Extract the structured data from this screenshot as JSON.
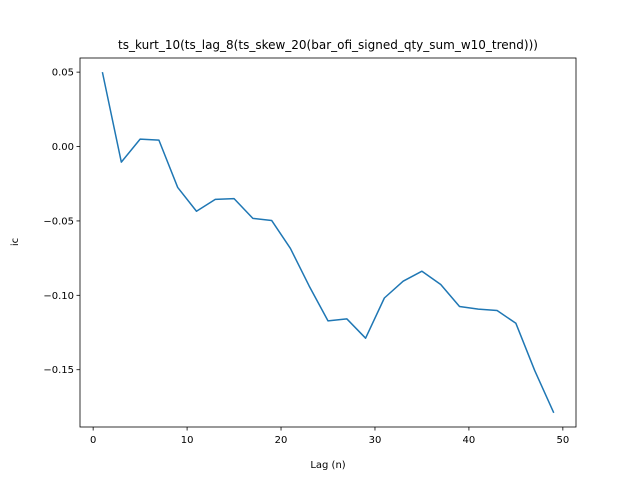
{
  "chart_data": {
    "type": "line",
    "title": "ts_kurt_10(ts_lag_8(ts_skew_20(bar_ofi_signed_qty_sum_w10_trend)))",
    "xlabel": "Lag (n)",
    "ylabel": "ic",
    "xlim": [
      -1.4,
      51.4
    ],
    "ylim": [
      -0.1885,
      0.0595
    ],
    "xticks": [
      0,
      10,
      20,
      30,
      40,
      50
    ],
    "xtick_labels": [
      "0",
      "10",
      "20",
      "30",
      "40",
      "50"
    ],
    "yticks": [
      0.05,
      0.0,
      -0.05,
      -0.1,
      -0.15
    ],
    "ytick_labels": [
      "0.05",
      "0.00",
      "−0.05",
      "−0.10",
      "−0.15"
    ],
    "grid": false,
    "series": [
      {
        "name": "ic",
        "color": "#1f77b4",
        "x": [
          1,
          3,
          5,
          7,
          9,
          11,
          13,
          15,
          17,
          19,
          21,
          23,
          25,
          27,
          29,
          31,
          33,
          35,
          37,
          39,
          41,
          43,
          45,
          47,
          49
        ],
        "y": [
          0.0495,
          -0.0105,
          0.005,
          0.0043,
          -0.0275,
          -0.0435,
          -0.0355,
          -0.035,
          -0.0483,
          -0.0497,
          -0.0685,
          -0.0938,
          -0.1172,
          -0.1158,
          -0.1288,
          -0.1018,
          -0.0905,
          -0.0838,
          -0.0927,
          -0.1075,
          -0.1093,
          -0.1102,
          -0.1188,
          -0.1505,
          -0.1785
        ]
      }
    ]
  }
}
